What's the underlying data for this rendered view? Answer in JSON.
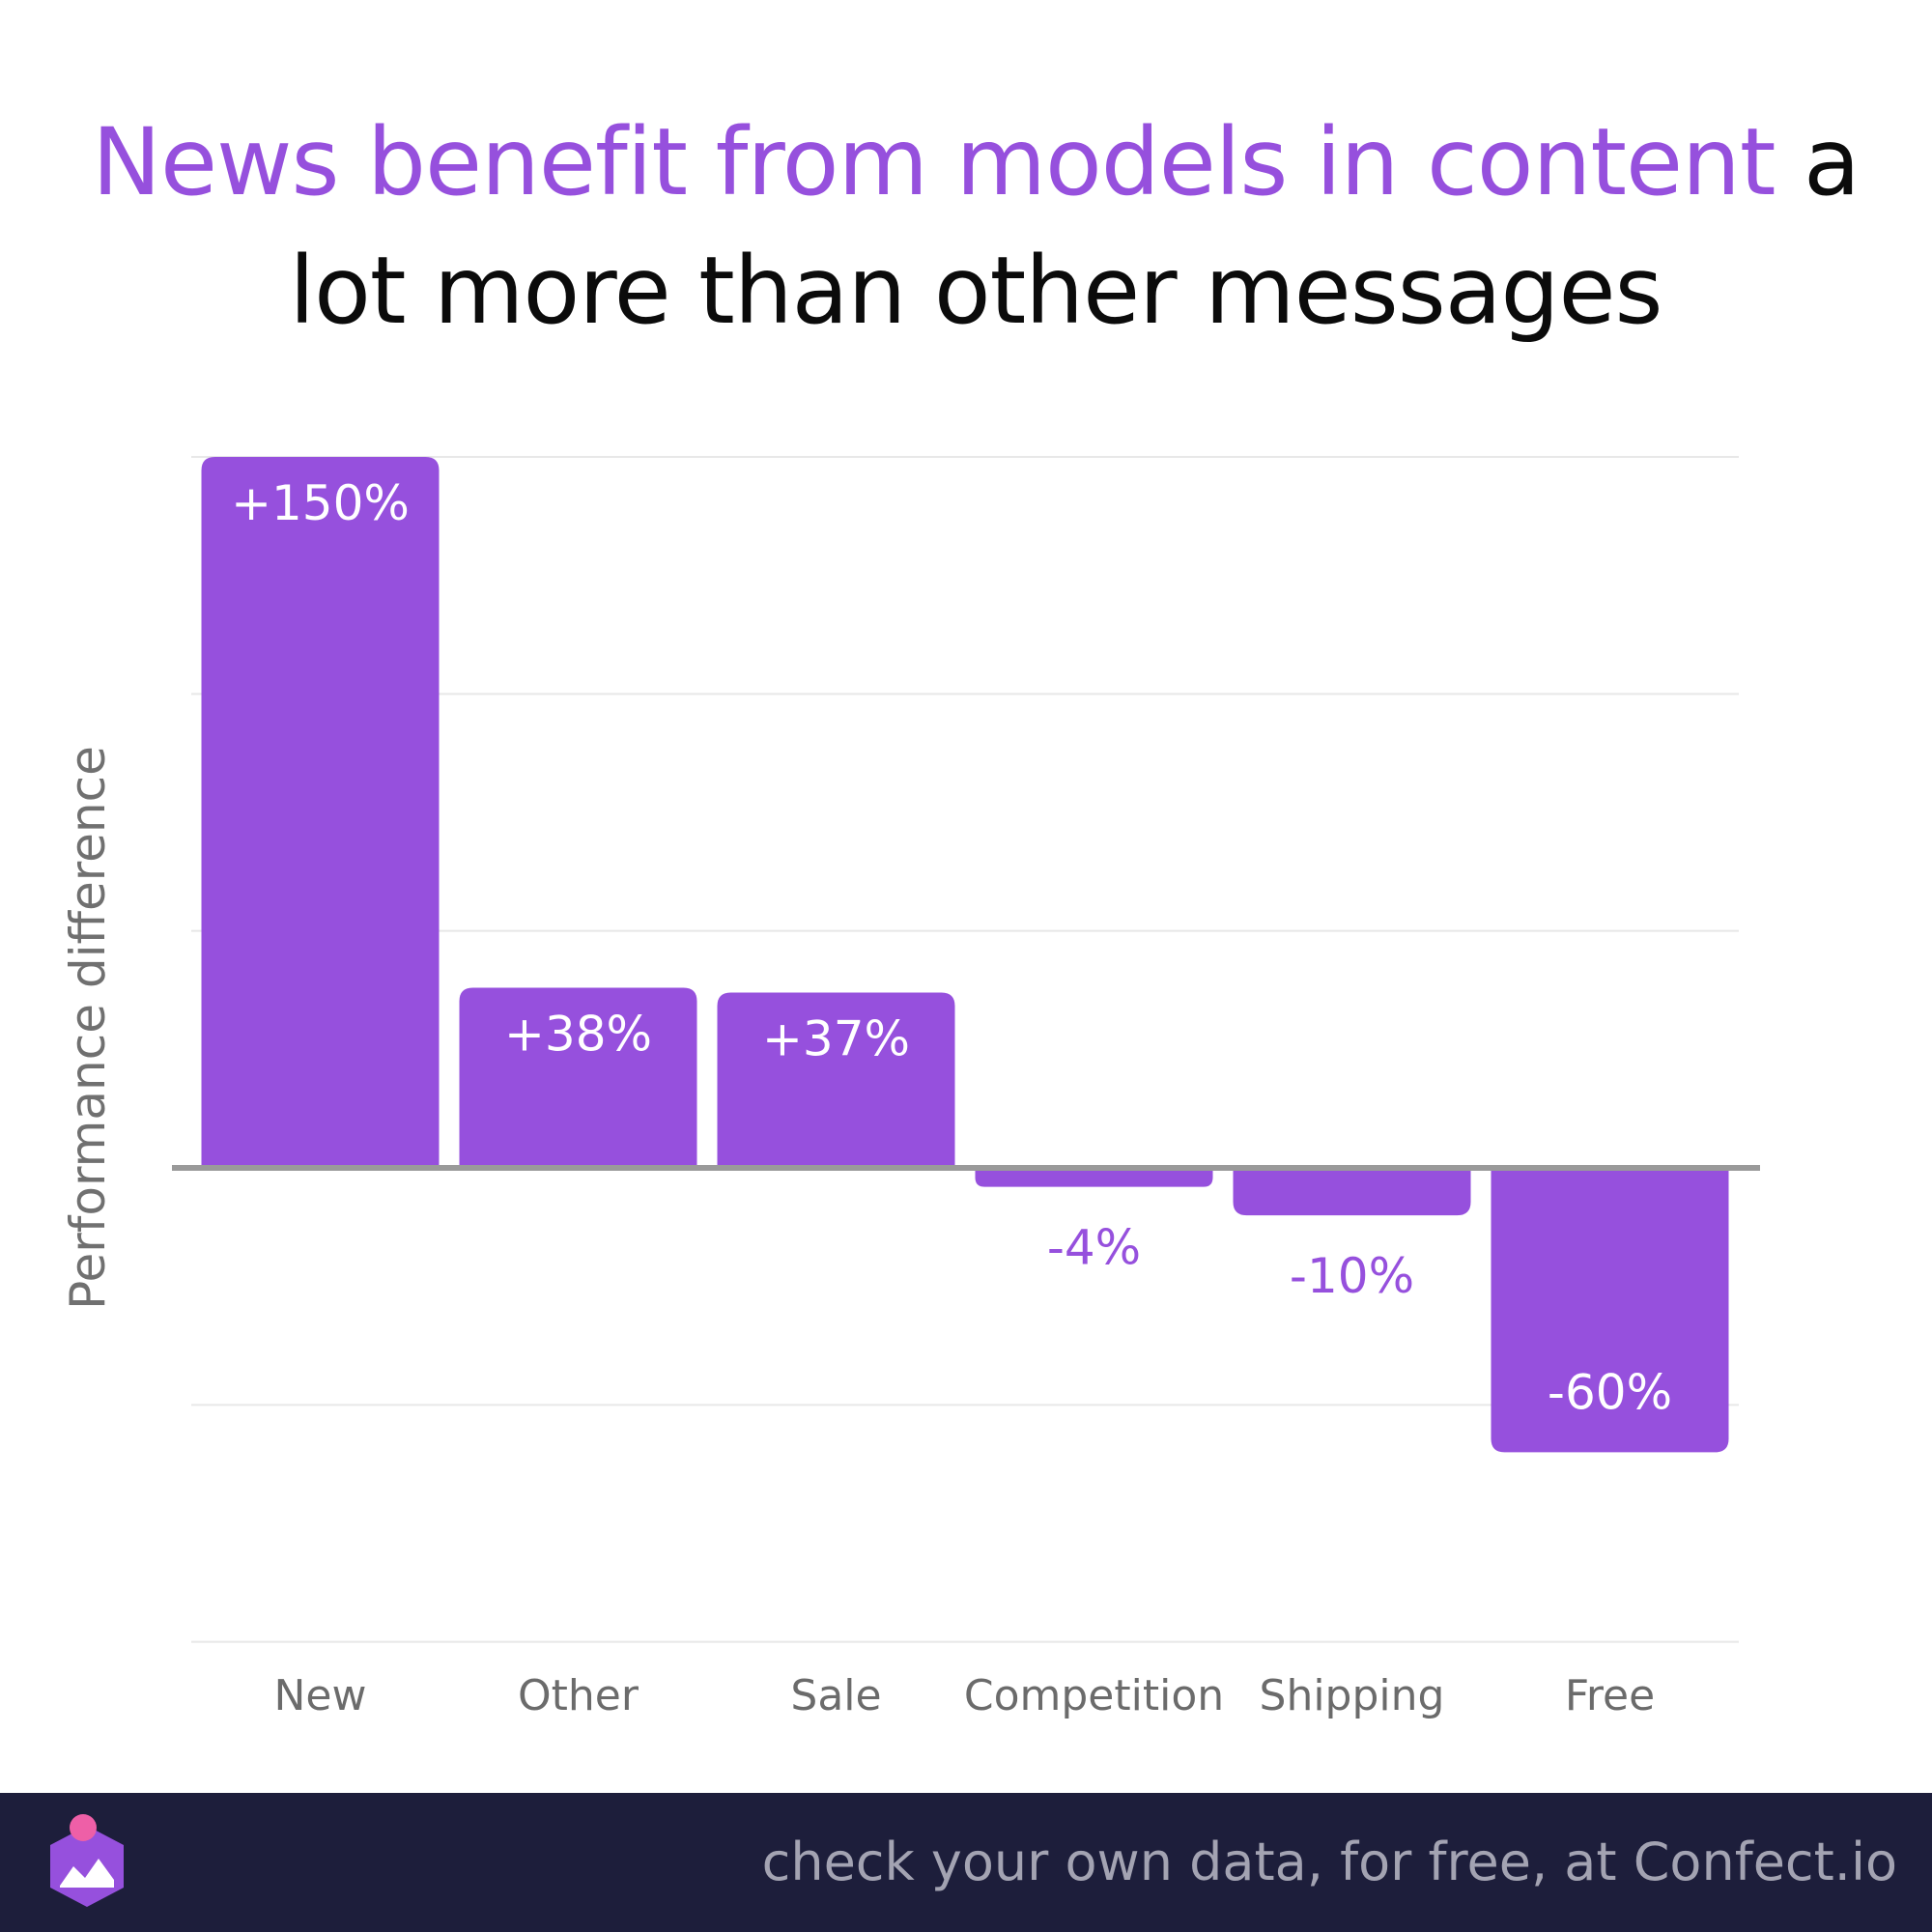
{
  "title": {
    "highlight": "News benefit from models in content",
    "rest": " a lot more than other messages"
  },
  "colors": {
    "bar": "#9650dd",
    "highlight": "#9650dd",
    "footer_bg": "#1d1e3b",
    "footer_text": "#a3a3b2"
  },
  "chart_data": {
    "type": "bar",
    "title": "News benefit from models in content a lot more than other messages",
    "xlabel": "",
    "ylabel": "Performance difference",
    "categories": [
      "New",
      "Other",
      "Sale",
      "Competition",
      "Shipping",
      "Free"
    ],
    "values": [
      150,
      38,
      37,
      -4,
      -10,
      -60
    ],
    "labels": [
      "+150%",
      "+38%",
      "+37%",
      "-4%",
      "-10%",
      "-60%"
    ],
    "ylim": [
      -100,
      150
    ],
    "grid": true,
    "legend": "none"
  },
  "footer": {
    "text": "check your own data, for free, at Confect.io",
    "logo_icon": "confect-logo-icon"
  }
}
